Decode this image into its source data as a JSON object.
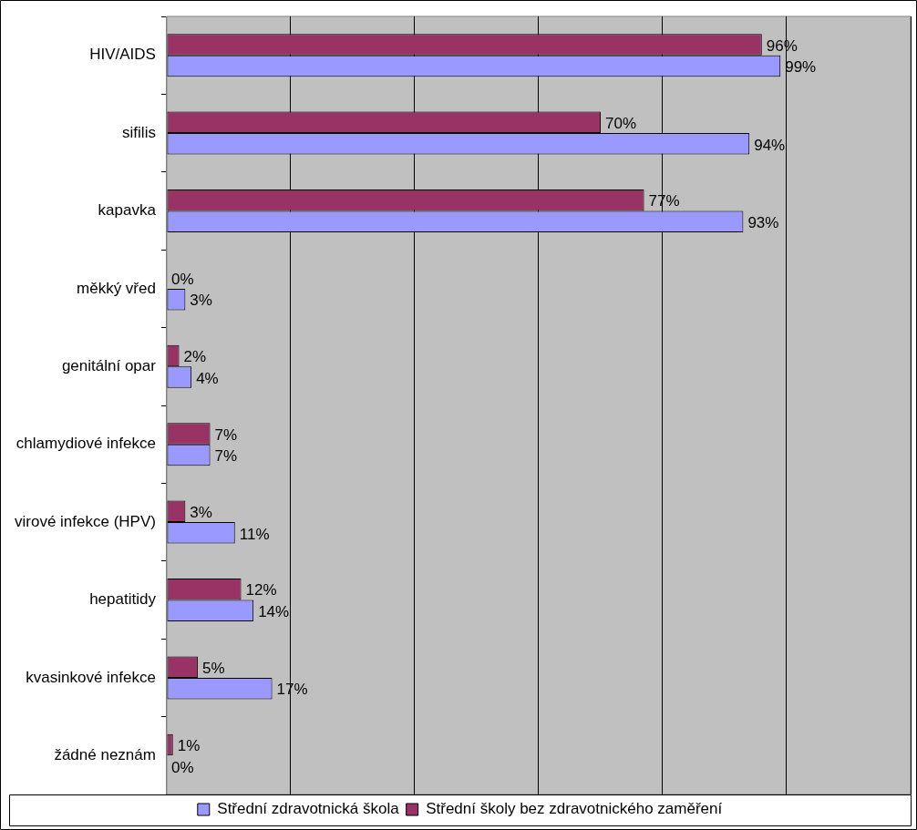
{
  "chart_data": {
    "type": "bar",
    "orientation": "horizontal",
    "categories": [
      "HIV/AIDS",
      "sifilis",
      "kapavka",
      "měkký vřed",
      "genitální opar",
      "chlamydiové infekce",
      "virové infekce (HPV)",
      "hepatitidy",
      "kvasinkové infekce",
      "žádné neznám"
    ],
    "series": [
      {
        "name": "Střední školy bez zdravotnického zaměření",
        "color": "#993366",
        "values": [
          96,
          70,
          77,
          0,
          2,
          7,
          3,
          12,
          5,
          1
        ],
        "value_labels": [
          "96%",
          "70%",
          "77%",
          "0%",
          "2%",
          "7%",
          "3%",
          "12%",
          "5%",
          "1%"
        ]
      },
      {
        "name": "Střední zdravotnická škola",
        "color": "#9999ff",
        "values": [
          99,
          94,
          93,
          3,
          4,
          7,
          11,
          14,
          17,
          0
        ],
        "value_labels": [
          "99%",
          "94%",
          "93%",
          "3%",
          "4%",
          "7%",
          "11%",
          "14%",
          "17%",
          "0%"
        ]
      }
    ],
    "xlim": [
      0,
      120
    ],
    "xticks": [
      {
        "value": 0,
        "label": null
      },
      {
        "value": 20,
        "label": null
      },
      {
        "value": 40,
        "label": null
      },
      {
        "value": 60,
        "label": null
      },
      {
        "value": 80,
        "label": null
      },
      {
        "value": 100,
        "label": null
      },
      {
        "value": 120,
        "label": null
      }
    ],
    "tick_labels": "y",
    "grid": "x",
    "legend": "bottom"
  }
}
